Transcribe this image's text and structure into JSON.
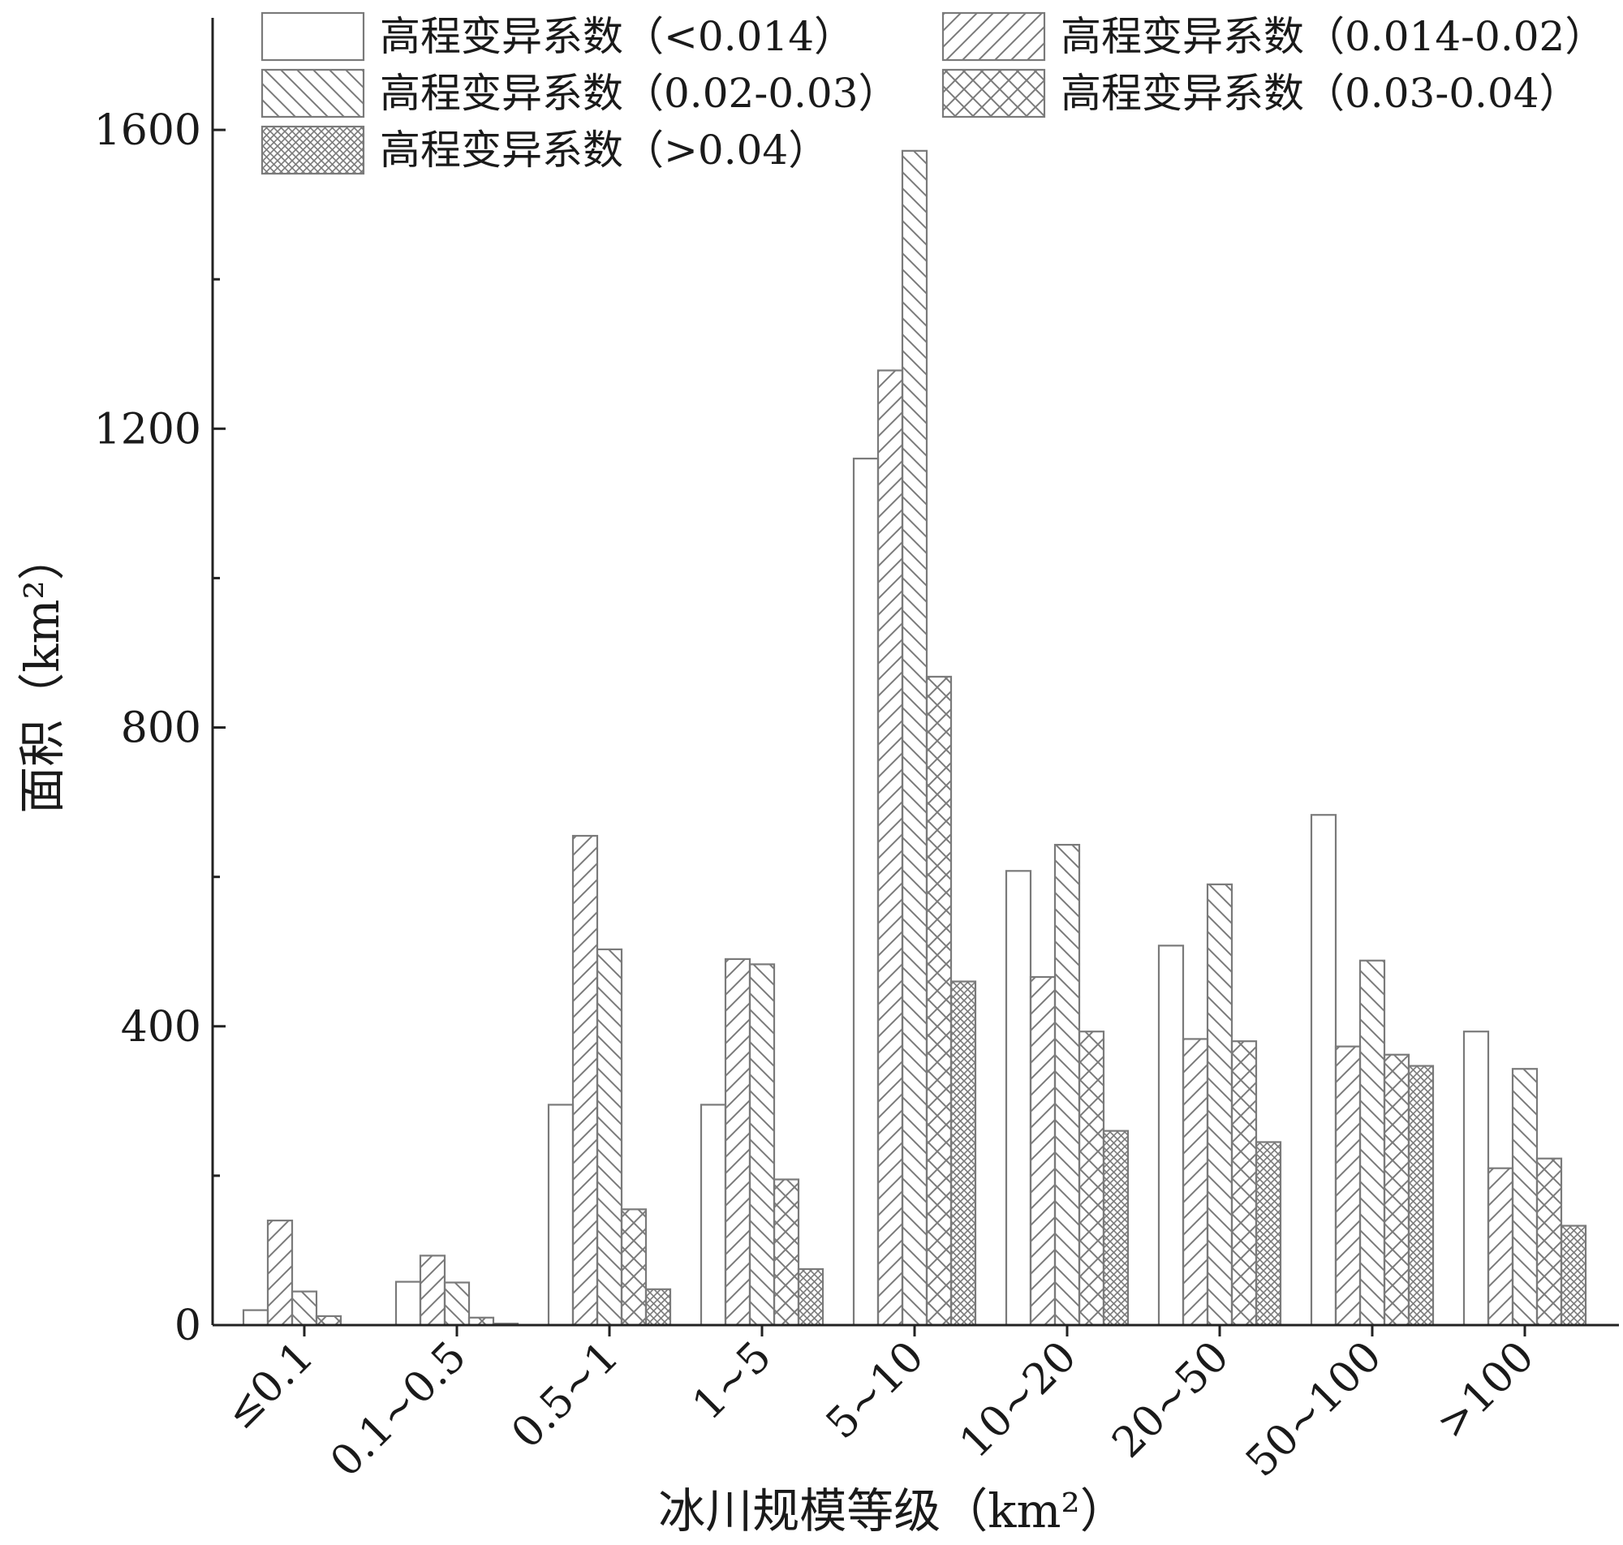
{
  "chart_data": {
    "type": "bar",
    "xlabel": "冰川规模等级（km²）",
    "ylabel": "面积（km²）",
    "ylim": [
      0,
      1750
    ],
    "yticks": [
      0,
      400,
      800,
      1200,
      1600
    ],
    "categories": [
      "≤0.1",
      "0.1~0.5",
      "0.5~1",
      "1~5",
      "5~10",
      "10~20",
      "20~50",
      "50~100",
      ">100"
    ],
    "series": [
      {
        "name": "高程变异系数（<0.014）",
        "pattern": "none",
        "values": [
          20,
          58,
          295,
          295,
          1160,
          608,
          508,
          683,
          393
        ]
      },
      {
        "name": "高程变异系数（0.014-0.02）",
        "pattern": "hatch-right",
        "values": [
          140,
          93,
          655,
          490,
          1278,
          466,
          383,
          373,
          210
        ]
      },
      {
        "name": "高程变异系数（0.02-0.03）",
        "pattern": "hatch-left",
        "values": [
          45,
          57,
          503,
          483,
          1572,
          643,
          590,
          488,
          343
        ]
      },
      {
        "name": "高程变异系数（0.03-0.04）",
        "pattern": "cross-wide",
        "values": [
          12,
          10,
          155,
          195,
          868,
          393,
          380,
          362,
          223
        ]
      },
      {
        "name": "高程变异系数（>0.04）",
        "pattern": "cross-dense",
        "values": [
          0,
          2,
          48,
          75,
          460,
          260,
          245,
          347,
          133
        ]
      }
    ],
    "legend_position": "top",
    "grid": false,
    "colors": {
      "bar_stroke": "#7a7a7a",
      "bar_fill": "#ffffff",
      "axis": "#222222"
    }
  }
}
